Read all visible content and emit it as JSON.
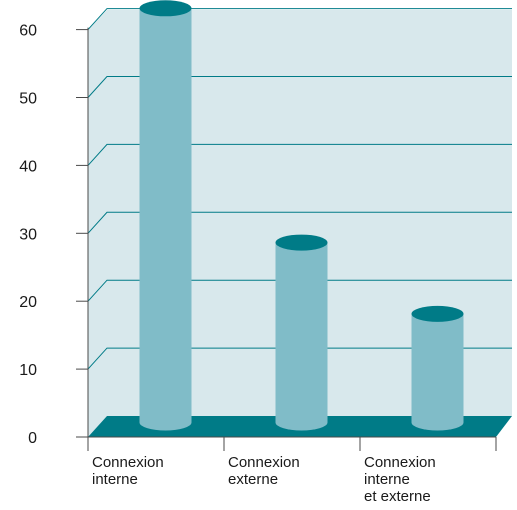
{
  "chart_data": {
    "type": "bar",
    "style": "3d-cylinder",
    "categories": [
      [
        "Connexion",
        "interne"
      ],
      [
        "Connexion",
        "externe"
      ],
      [
        "Connexion",
        "interne",
        "et externe"
      ]
    ],
    "values": [
      61,
      26.5,
      16
    ],
    "ylim": [
      0,
      60
    ],
    "yticks": [
      0,
      10,
      20,
      30,
      40,
      50,
      60
    ],
    "grid": true,
    "legend": "none",
    "colors": {
      "bar": "#80bcc8",
      "bar_top": "#007b87",
      "wall": "#d8e8ec",
      "floor": "#007b87",
      "grid": "#007b87",
      "axis": "#4a4a4a"
    }
  }
}
